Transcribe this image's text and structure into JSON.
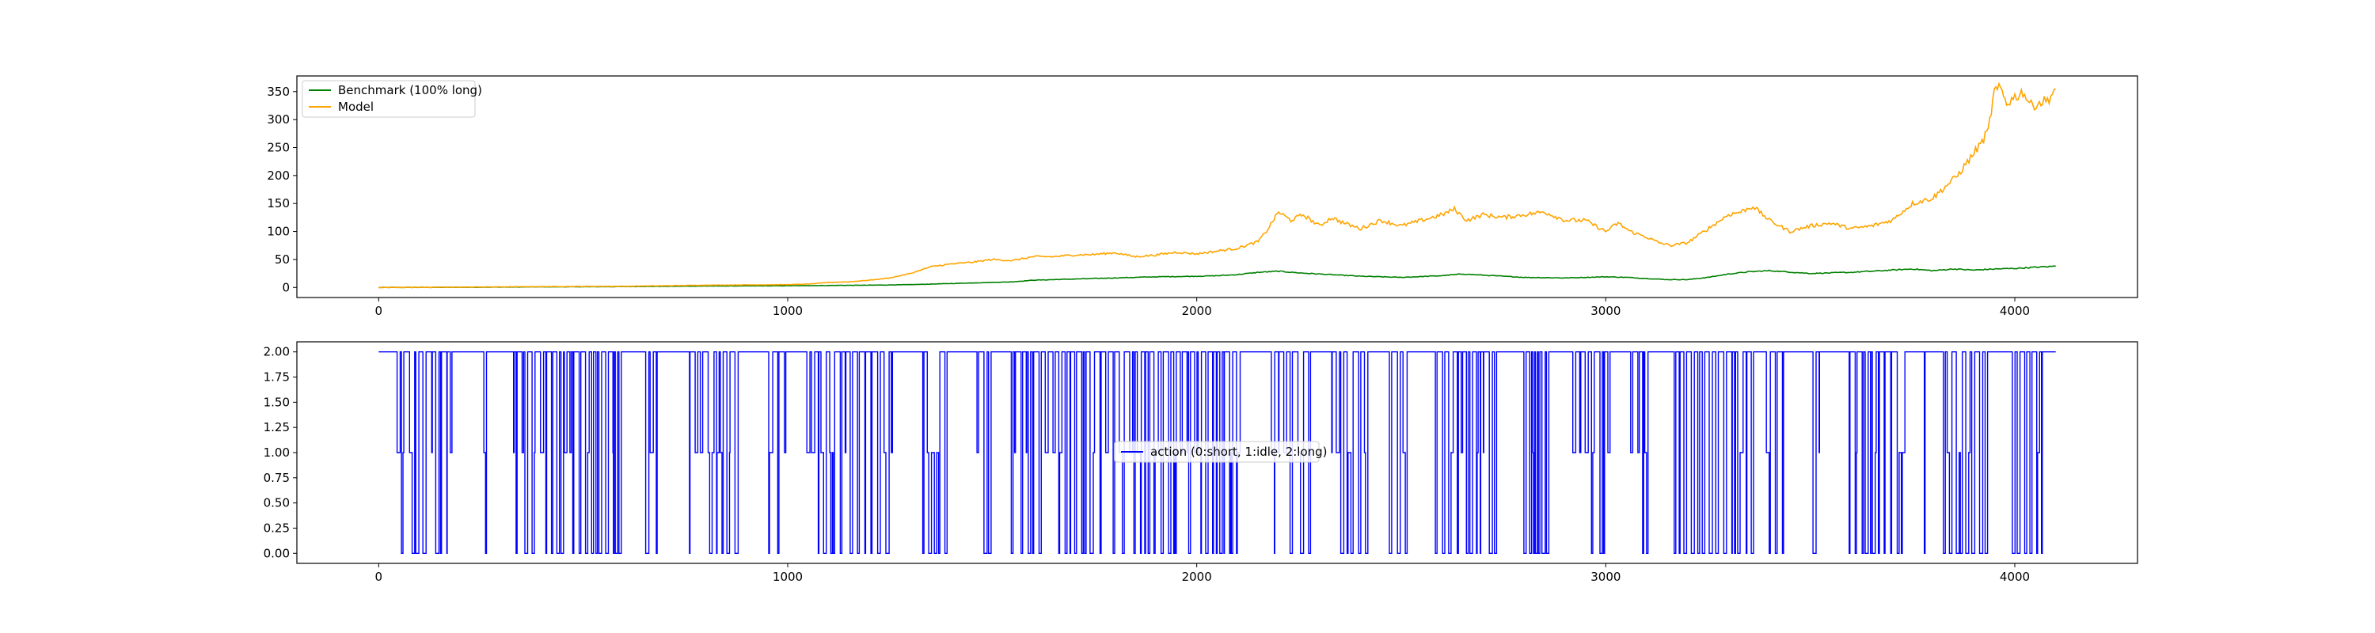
{
  "chart_data": [
    {
      "type": "line",
      "title": "",
      "xlabel": "",
      "ylabel": "",
      "xlim": [
        -200,
        4300
      ],
      "ylim": [
        -18,
        378
      ],
      "xticks": [
        0,
        1000,
        2000,
        3000,
        4000
      ],
      "yticks": [
        0,
        50,
        100,
        150,
        200,
        250,
        300,
        350
      ],
      "grid": false,
      "legend_loc": "upper-left",
      "series": [
        {
          "name": "Benchmark (100% long)",
          "color": "#008000",
          "x": [
            0,
            200,
            400,
            600,
            800,
            1000,
            1100,
            1200,
            1300,
            1400,
            1500,
            1550,
            1600,
            1700,
            1800,
            1900,
            2000,
            2050,
            2100,
            2150,
            2200,
            2250,
            2300,
            2350,
            2400,
            2500,
            2600,
            2650,
            2700,
            2800,
            2900,
            3000,
            3050,
            3100,
            3150,
            3200,
            3250,
            3300,
            3350,
            3400,
            3500,
            3600,
            3700,
            3750,
            3800,
            3850,
            3900,
            3950,
            4000,
            4050,
            4100
          ],
          "y": [
            0,
            0.3,
            1,
            1.5,
            2.5,
            3,
            3.5,
            4,
            5,
            7,
            9,
            10,
            13,
            15,
            17,
            19,
            20,
            21,
            23,
            27,
            29,
            26,
            24,
            22,
            20,
            18,
            21,
            24,
            22,
            18,
            17,
            19,
            18,
            16,
            14,
            14,
            18,
            24,
            28,
            30,
            25,
            27,
            31,
            33,
            30,
            33,
            31,
            33,
            34,
            36,
            38
          ]
        },
        {
          "name": "Model",
          "color": "#ffa500",
          "x": [
            0,
            200,
            400,
            600,
            700,
            800,
            900,
            1000,
            1050,
            1100,
            1150,
            1200,
            1250,
            1300,
            1350,
            1400,
            1450,
            1500,
            1550,
            1600,
            1650,
            1700,
            1750,
            1800,
            1850,
            1900,
            1950,
            2000,
            2050,
            2100,
            2150,
            2170,
            2200,
            2230,
            2260,
            2300,
            2330,
            2360,
            2400,
            2450,
            2500,
            2550,
            2600,
            2630,
            2660,
            2700,
            2750,
            2800,
            2850,
            2900,
            2950,
            3000,
            3030,
            3060,
            3100,
            3130,
            3160,
            3200,
            3230,
            3260,
            3300,
            3330,
            3360,
            3400,
            3450,
            3500,
            3550,
            3600,
            3650,
            3700,
            3750,
            3800,
            3830,
            3860,
            3900,
            3920,
            3935,
            3950,
            3965,
            3980,
            4000,
            4020,
            4040,
            4060,
            4080,
            4100
          ],
          "y": [
            0,
            0.5,
            1.5,
            2,
            3,
            4,
            4.5,
            5,
            6,
            9,
            10,
            13,
            17,
            25,
            37,
            42,
            45,
            50,
            48,
            55,
            55,
            58,
            59,
            62,
            55,
            58,
            63,
            60,
            65,
            70,
            82,
            100,
            135,
            120,
            130,
            110,
            125,
            115,
            105,
            120,
            110,
            120,
            130,
            140,
            120,
            130,
            125,
            130,
            135,
            120,
            120,
            100,
            115,
            100,
            90,
            80,
            75,
            80,
            95,
            110,
            130,
            135,
            145,
            120,
            100,
            110,
            115,
            105,
            110,
            120,
            150,
            160,
            180,
            200,
            240,
            260,
            280,
            350,
            355,
            330,
            340,
            350,
            325,
            330,
            335,
            355
          ]
        }
      ]
    },
    {
      "type": "line",
      "title": "",
      "xlabel": "",
      "ylabel": "",
      "xlim": [
        -200,
        4300
      ],
      "ylim": [
        -0.1,
        2.1
      ],
      "xticks": [
        0,
        1000,
        2000,
        3000,
        4000
      ],
      "yticks": [
        0.0,
        0.25,
        0.5,
        0.75,
        1.0,
        1.25,
        1.5,
        1.75,
        2.0
      ],
      "ytick_labels": [
        "0.00",
        "0.25",
        "0.50",
        "0.75",
        "1.00",
        "1.25",
        "1.50",
        "1.75",
        "2.00"
      ],
      "grid": false,
      "legend_loc": "center",
      "series": [
        {
          "name": "action (0:short, 1:idle, 2:long)",
          "color": "#0000ff",
          "x_start": 0,
          "x_end": 4100,
          "levels": [
            0,
            1,
            2
          ],
          "initial_value": 2
        }
      ]
    }
  ]
}
